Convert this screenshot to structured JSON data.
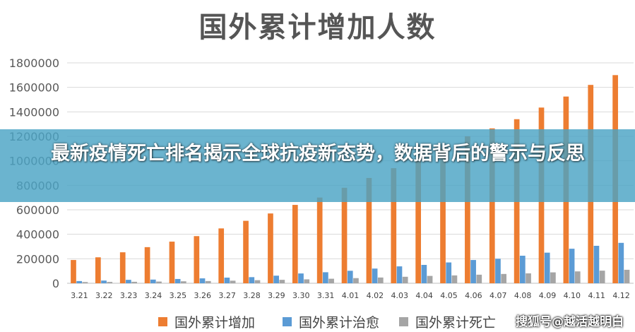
{
  "chart_data": {
    "type": "bar",
    "title": "国外累计增加人数",
    "categories": [
      "3.21",
      "3.22",
      "3.23",
      "3.24",
      "3.25",
      "3.26",
      "3.27",
      "3.28",
      "3.29",
      "3.30",
      "3.31",
      "4.01",
      "4.02",
      "4.03",
      "4.04",
      "4.05",
      "4.06",
      "4.07",
      "4.08",
      "4.09",
      "4.10",
      "4.11",
      "4.12"
    ],
    "series": [
      {
        "name": "国外累计增加",
        "color": "#ED7D31",
        "values": [
          190000,
          212000,
          253000,
          295000,
          340000,
          385000,
          448000,
          510000,
          570000,
          640000,
          700000,
          780000,
          860000,
          940000,
          1020000,
          1100000,
          1200000,
          1265000,
          1340000,
          1435000,
          1525000,
          1620000,
          1700000
        ]
      },
      {
        "name": "国外累计治愈",
        "color": "#5B9BD5",
        "values": [
          18000,
          22000,
          28000,
          30000,
          35000,
          40000,
          46000,
          50000,
          62000,
          80000,
          90000,
          102000,
          120000,
          138000,
          150000,
          170000,
          190000,
          200000,
          225000,
          250000,
          282000,
          306000,
          330000
        ]
      },
      {
        "name": "国外累计死亡",
        "color": "#A5A5A5",
        "values": [
          10000,
          11000,
          12000,
          14000,
          16000,
          18000,
          21000,
          25000,
          28000,
          32000,
          37000,
          42000,
          47000,
          53000,
          60000,
          64000,
          70000,
          76000,
          81000,
          89000,
          97000,
          103000,
          110000
        ]
      }
    ],
    "yticks": [
      0,
      200000,
      400000,
      600000,
      800000,
      1000000,
      1200000,
      1400000,
      1600000,
      1800000
    ],
    "ylim": [
      0,
      1800000
    ],
    "grid": true,
    "legend_position": "bottom"
  },
  "overlay": {
    "headline": "最新疫情死亡排名揭示全球抗疫新态势，数据背后的警示与反思"
  },
  "watermark": "搜狐号@越活越明白"
}
